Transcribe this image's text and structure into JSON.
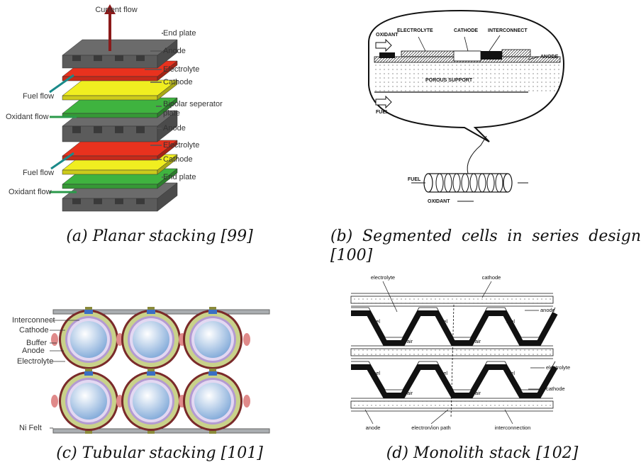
{
  "panels": [
    {
      "caption": "(a) Planar stacking [99]",
      "labels": [
        "Current flow",
        "End plate",
        "Anode",
        "Electrolyte",
        "Cathode",
        "Bipolar seperator",
        "plate",
        "Anode",
        "Electrolyte",
        "Cathode",
        "End plate",
        "Fuel flow",
        "Oxidant flow",
        "Fuel flow",
        "Oxidant flow"
      ]
    },
    {
      "caption": "(b) Segmented cells in series design [100]",
      "labels": [
        "OXIDANT",
        "ELECTROLYTE",
        "CATHODE",
        "INTERCONNECT",
        "ANODE",
        "POROUS SUPPORT",
        "FUEL",
        "FUEL",
        "OXIDANT"
      ]
    },
    {
      "caption": "(c) Tubular stacking [101]",
      "labels": [
        "Interconnect",
        "Cathode",
        "Buffer",
        "Anode",
        "Electrolyte",
        "Ni Felt"
      ]
    },
    {
      "caption": "(d) Monolith stack [102]",
      "labels": [
        "electrolyte",
        "cathode",
        "anode",
        "fuel",
        "fuel",
        "fuel",
        "air",
        "air",
        "fuel",
        "fuel",
        "fuel",
        "air",
        "air",
        "electrolyte",
        "cathode",
        "anode",
        "electron/ion path",
        "interconnection"
      ]
    }
  ]
}
